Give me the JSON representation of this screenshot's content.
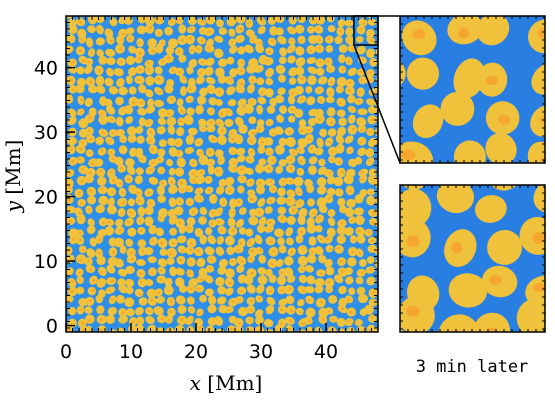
{
  "main_panel": {
    "x_axis": {
      "variable": "x",
      "unit": "[Mm]",
      "ticks": [
        "0",
        "10",
        "20",
        "30",
        "40"
      ],
      "tick_values": [
        0,
        10,
        20,
        30,
        40
      ],
      "range": [
        0,
        48
      ]
    },
    "y_axis": {
      "variable": "y",
      "unit": "[Mm]",
      "ticks": [
        "0",
        "10",
        "20",
        "30",
        "40"
      ],
      "tick_values": [
        0,
        10,
        20,
        30,
        40
      ],
      "range": [
        -1,
        48
      ]
    }
  },
  "inset_panels": {
    "zoom_region": {
      "x": [
        44.3,
        48
      ],
      "y": [
        43.5,
        48
      ]
    },
    "caption": "3 min later"
  },
  "colors": {
    "granule": "#f0c23c",
    "granule_core": "#f4a62e",
    "lane": "#2f8fe6",
    "lane_dark": "#1f5fd8"
  }
}
